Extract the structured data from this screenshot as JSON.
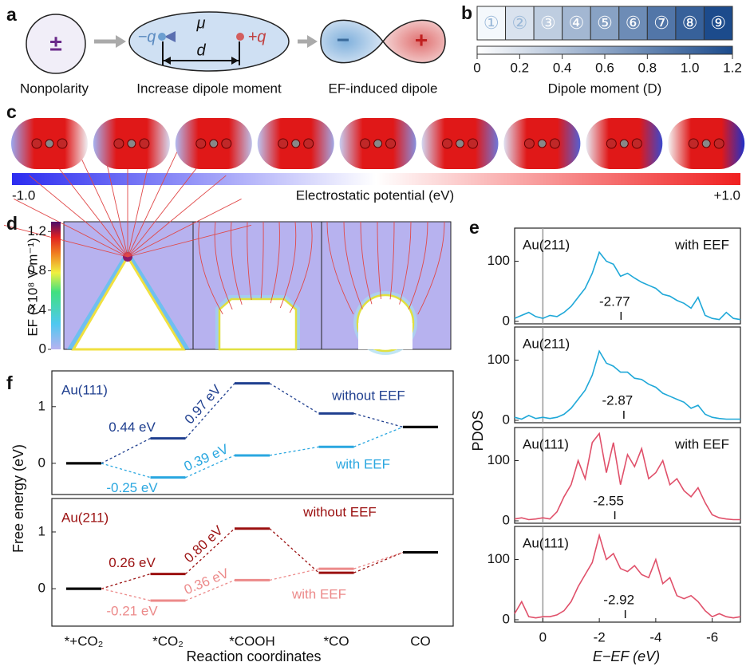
{
  "panel_labels": [
    "a",
    "b",
    "c",
    "d",
    "e",
    "f"
  ],
  "panel_a": {
    "nonpolar_symbol": "±",
    "nonpolar_label": "Nonpolarity",
    "dipole_mu": "μ",
    "dipole_d": "d",
    "charge_neg": "−q",
    "charge_pos": "+q",
    "dipole_label": "Increase dipole moment",
    "induced_neg": "−",
    "induced_pos": "+",
    "induced_label": "EF-induced dipole"
  },
  "panel_b": {
    "cells": [
      "①",
      "②",
      "③",
      "④",
      "⑤",
      "⑥",
      "⑦",
      "⑧",
      "⑨"
    ],
    "xlim": [
      0,
      1.2
    ],
    "xticks": [
      0,
      0.2,
      0.4,
      0.6,
      0.8,
      {
        "value": 1,
        "label": "1.0"
      },
      1.2
    ],
    "xlabel": "Dipole moment (D)"
  },
  "panel_c": {
    "colorbar_lim": [
      -1,
      1
    ],
    "colorbar_ticks": [
      {
        "value": -1,
        "label": "-1.0"
      },
      {
        "value": 1,
        "label": "+1.0"
      }
    ],
    "colorbar_label": "Electrostatic potential (eV)"
  },
  "panel_d": {
    "colorbar_lim": [
      0,
      1.3
    ],
    "colorbar_ticks": [
      0,
      0.4,
      0.8,
      1.2
    ],
    "colorbar_label": "EF (×10⁸ V m⁻¹)"
  },
  "panel_e": {
    "ylabel": "PDOS",
    "xlabel": "E−EF (eV)"
  },
  "panel_f": {
    "ylabel": "Free energy (eV)",
    "xlabel": "Reaction coordinates"
  },
  "chart_data": [
    {
      "type": "line",
      "label": "Au(211)",
      "condition": "with EEF",
      "color": "#1fa8d8",
      "xlim": [
        1,
        -7
      ],
      "ylim": [
        -4,
        155
      ],
      "yticks": [
        0,
        100
      ],
      "vline": 0,
      "d_band_center": -2.77,
      "x": [
        1,
        0.75,
        0.5,
        0.25,
        0,
        -0.25,
        -0.5,
        -0.75,
        -1,
        -1.25,
        -1.5,
        -1.75,
        -2,
        -2.25,
        -2.5,
        -2.75,
        -3,
        -3.25,
        -3.5,
        -3.75,
        -4,
        -4.25,
        -4.5,
        -4.75,
        -5,
        -5.25,
        -5.5,
        -5.75,
        -6,
        -6.25,
        -6.5,
        -6.75,
        -7
      ],
      "values": [
        5,
        10,
        15,
        8,
        5,
        10,
        8,
        15,
        25,
        40,
        55,
        80,
        115,
        100,
        95,
        75,
        80,
        72,
        65,
        60,
        55,
        45,
        42,
        35,
        30,
        22,
        40,
        10,
        5,
        3,
        15,
        5,
        3
      ]
    },
    {
      "type": "line",
      "label": "Au(211)",
      "color": "#1fa8d8",
      "xlim": [
        1,
        -7
      ],
      "ylim": [
        -4,
        155
      ],
      "yticks": [
        0,
        100
      ],
      "vline": 0,
      "d_band_center": -2.87,
      "x": [
        1,
        0.75,
        0.5,
        0.25,
        0,
        -0.25,
        -0.5,
        -0.75,
        -1,
        -1.25,
        -1.5,
        -1.75,
        -2,
        -2.25,
        -2.5,
        -2.75,
        -3,
        -3.25,
        -3.5,
        -3.75,
        -4,
        -4.25,
        -4.5,
        -4.75,
        -5,
        -5.25,
        -5.5,
        -5.75,
        -6,
        -6.25,
        -6.5,
        -6.75,
        -7
      ],
      "values": [
        5,
        2,
        8,
        3,
        5,
        3,
        5,
        10,
        20,
        35,
        50,
        75,
        115,
        95,
        90,
        80,
        80,
        70,
        68,
        60,
        55,
        45,
        40,
        35,
        30,
        20,
        25,
        10,
        5,
        3,
        2,
        2,
        2
      ]
    },
    {
      "type": "line",
      "label": "Au(111)",
      "condition": "with EEF",
      "color": "#e0506a",
      "xlim": [
        1,
        -7
      ],
      "ylim": [
        -4,
        155
      ],
      "yticks": [
        0,
        100
      ],
      "vline": 0,
      "d_band_center": -2.55,
      "x": [
        1,
        0.75,
        0.5,
        0.25,
        0,
        -0.25,
        -0.5,
        -0.75,
        -1,
        -1.25,
        -1.5,
        -1.75,
        -2,
        -2.25,
        -2.5,
        -2.75,
        -3,
        -3.25,
        -3.5,
        -3.75,
        -4,
        -4.25,
        -4.5,
        -4.75,
        -5,
        -5.25,
        -5.5,
        -5.75,
        -6,
        -6.25,
        -6.5,
        -6.75,
        -7
      ],
      "values": [
        3,
        5,
        2,
        3,
        5,
        3,
        15,
        40,
        60,
        100,
        70,
        130,
        145,
        80,
        130,
        60,
        110,
        90,
        120,
        70,
        80,
        100,
        60,
        70,
        50,
        40,
        55,
        30,
        10,
        5,
        3,
        2,
        2
      ]
    },
    {
      "type": "line",
      "label": "Au(111)",
      "color": "#e0506a",
      "xlim": [
        1,
        -7
      ],
      "ylim": [
        -4,
        155
      ],
      "yticks": [
        0,
        100
      ],
      "vline": 0,
      "d_band_center": -2.92,
      "xticks": [
        0,
        -2,
        -4,
        -6
      ],
      "x": [
        1,
        0.75,
        0.5,
        0.25,
        0,
        -0.25,
        -0.5,
        -0.75,
        -1,
        -1.25,
        -1.5,
        -1.75,
        -2,
        -2.25,
        -2.5,
        -2.75,
        -3,
        -3.25,
        -3.5,
        -3.75,
        -4,
        -4.25,
        -4.5,
        -4.75,
        -5,
        -5.25,
        -5.5,
        -5.75,
        -6,
        -6.25,
        -6.5,
        -6.75,
        -7
      ],
      "values": [
        10,
        30,
        5,
        3,
        5,
        5,
        8,
        15,
        30,
        55,
        75,
        95,
        140,
        100,
        110,
        85,
        80,
        90,
        75,
        70,
        100,
        60,
        70,
        40,
        35,
        40,
        30,
        15,
        5,
        10,
        5,
        3,
        5
      ]
    },
    {
      "type": "level",
      "label": "Au(111)",
      "endpoint_color": "#000000",
      "ylim": [
        -0.55,
        1.63
      ],
      "yticks": [
        0,
        1
      ],
      "series": [
        {
          "name": "without EEF",
          "color": "#1f3f8f",
          "values": [
            0,
            0.44,
            1.41,
            0.88,
            0.64
          ],
          "value_labels": [
            null,
            "0.44 eV",
            null,
            null,
            null
          ],
          "barrier_label": "0.97 eV"
        },
        {
          "name": "with EEF",
          "color": "#2aa7e0",
          "values": [
            0,
            -0.25,
            0.14,
            0.29,
            0.64
          ],
          "value_labels": [
            null,
            "-0.25 eV",
            null,
            null,
            null
          ],
          "barrier_label": "0.39 eV"
        }
      ]
    },
    {
      "type": "level",
      "label": "Au(211)",
      "endpoint_color": "#000000",
      "ylim": [
        -0.66,
        1.59
      ],
      "yticks": [
        0,
        1
      ],
      "categories": [
        "*+CO₂",
        "*CO₂",
        "*COOH",
        "*CO",
        "CO"
      ],
      "series": [
        {
          "name": "without EEF",
          "color": "#9b1010",
          "values": [
            0,
            0.26,
            1.06,
            0.28,
            0.64
          ],
          "value_labels": [
            null,
            "0.26 eV",
            null,
            null,
            null
          ],
          "barrier_label": "0.80 eV"
        },
        {
          "name": "with EEF",
          "color": "#ec8a8a",
          "values": [
            0,
            -0.21,
            0.15,
            0.35,
            0.64
          ],
          "value_labels": [
            null,
            "-0.21 eV",
            null,
            null,
            null
          ],
          "barrier_label": "0.36 eV"
        }
      ]
    }
  ]
}
